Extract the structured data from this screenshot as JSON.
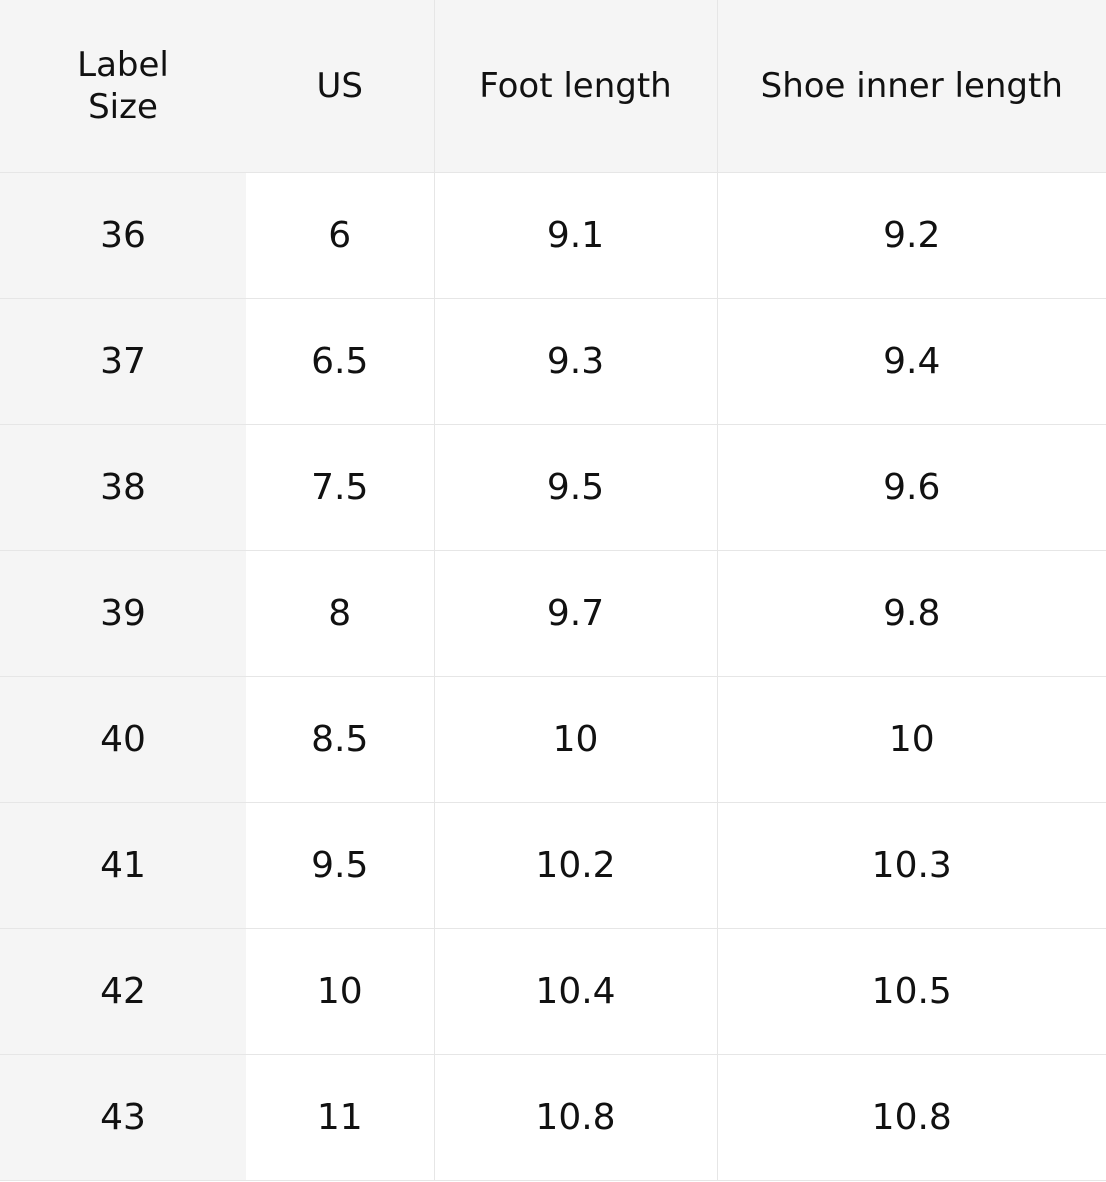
{
  "headers": {
    "label_line1": "Label",
    "label_line2": "Size",
    "us": "US",
    "foot": "Foot length",
    "inner": "Shoe inner length"
  },
  "rows": [
    {
      "label": "36",
      "us": "6",
      "foot": "9.1",
      "inner": "9.2"
    },
    {
      "label": "37",
      "us": "6.5",
      "foot": "9.3",
      "inner": "9.4"
    },
    {
      "label": "38",
      "us": "7.5",
      "foot": "9.5",
      "inner": "9.6"
    },
    {
      "label": "39",
      "us": "8",
      "foot": "9.7",
      "inner": "9.8"
    },
    {
      "label": "40",
      "us": "8.5",
      "foot": "10",
      "inner": "10"
    },
    {
      "label": "41",
      "us": "9.5",
      "foot": "10.2",
      "inner": "10.3"
    },
    {
      "label": "42",
      "us": "10",
      "foot": "10.4",
      "inner": "10.5"
    },
    {
      "label": "43",
      "us": "11",
      "foot": "10.8",
      "inner": "10.8"
    }
  ]
}
